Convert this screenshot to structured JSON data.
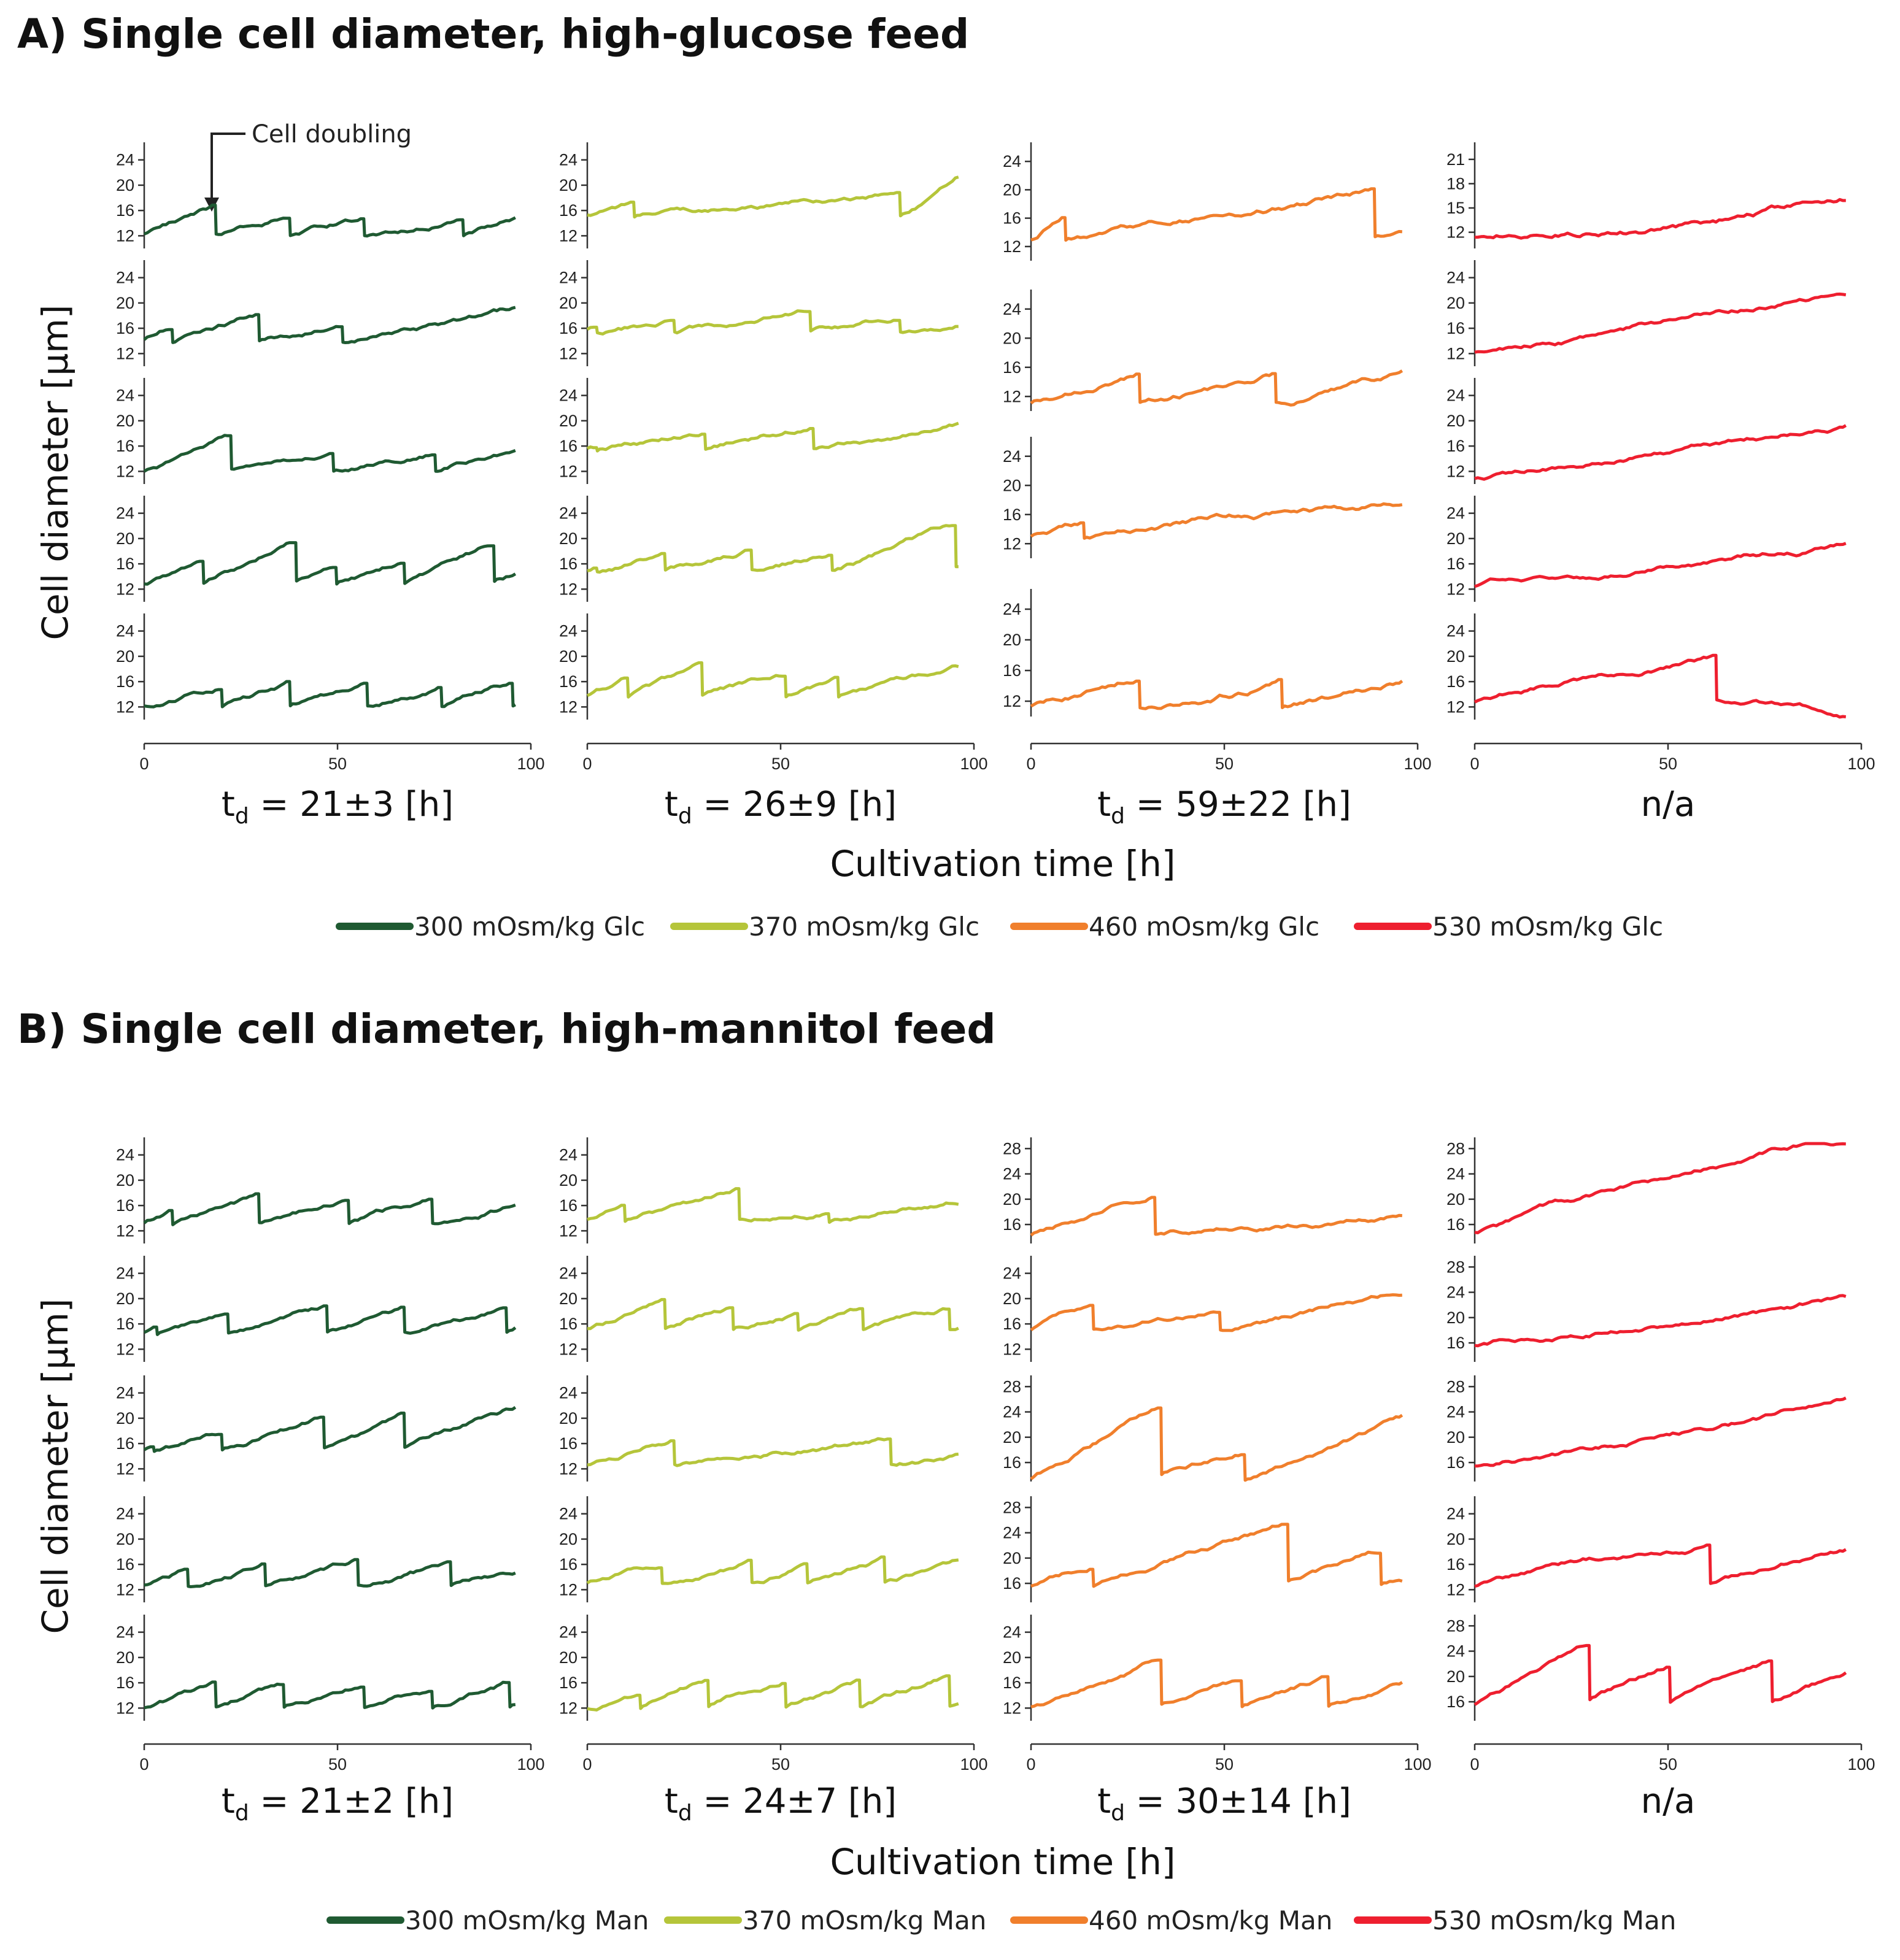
{
  "section_a": {
    "title": "A) Single cell diameter, high-glucose feed",
    "ylabel": "Cell diameter [µm]",
    "xlabel": "Cultivation time [h]",
    "annotation": "Cell doubling",
    "columns": [
      {
        "label_main": "t",
        "label_sub": "d",
        "label_rest": " = 21±3 [h]"
      },
      {
        "label_main": "t",
        "label_sub": "d",
        "label_rest": " = 26±9 [h]"
      },
      {
        "label_main": "t",
        "label_sub": "d",
        "label_rest": " = 59±22 [h]"
      },
      {
        "label_main": "n/a",
        "label_sub": "",
        "label_rest": ""
      }
    ],
    "legend": [
      "300 mOsm/kg Glc",
      "370 mOsm/kg Glc",
      "460 mOsm/kg Glc",
      "530 mOsm/kg Glc"
    ]
  },
  "section_b": {
    "title": "B) Single cell diameter, high-mannitol feed",
    "ylabel": "Cell diameter [µm]",
    "xlabel": "Cultivation time [h]",
    "columns": [
      {
        "label_main": "t",
        "label_sub": "d",
        "label_rest": " = 21±2 [h]"
      },
      {
        "label_main": "t",
        "label_sub": "d",
        "label_rest": " = 24±7 [h]"
      },
      {
        "label_main": "t",
        "label_sub": "d",
        "label_rest": " = 30±14 [h]"
      },
      {
        "label_main": "n/a",
        "label_sub": "",
        "label_rest": ""
      }
    ],
    "legend": [
      "300 mOsm/kg Man",
      "370 mOsm/kg Man",
      "460 mOsm/kg Man",
      "530 mOsm/kg Man"
    ]
  },
  "colors": [
    "#1f5a32",
    "#b5c53a",
    "#f07f2c",
    "#ee1f2f"
  ],
  "chart_data": {
    "type": "line",
    "xlim": [
      0,
      100
    ],
    "x_ticks": [
      0,
      50,
      100
    ],
    "panels": [
      {
        "id": "A-1-1",
        "section": "A",
        "col": 1,
        "row": 1,
        "yticks": [
          12,
          16,
          20,
          24
        ],
        "ylim": [
          10,
          26
        ],
        "start": 12,
        "drifts": [
          0.2,
          0.17,
          0.12,
          0.15,
          0.15,
          0.14
        ],
        "drops": [
          18,
          37,
          56,
          82
        ],
        "end": 96
      },
      {
        "id": "A-1-2",
        "section": "A",
        "col": 1,
        "row": 2,
        "yticks": [
          12,
          16,
          20,
          24
        ],
        "ylim": [
          10,
          26
        ],
        "start": 13.8,
        "drifts": [
          0.3,
          0.18,
          0.15,
          0.07
        ],
        "drops": [
          7,
          29,
          51
        ],
        "end": 96
      },
      {
        "id": "A-1-3",
        "section": "A",
        "col": 1,
        "row": 3,
        "yticks": [
          12,
          16,
          20,
          24
        ],
        "ylim": [
          10,
          26
        ],
        "start": 12,
        "drifts": [
          0.2,
          0.12,
          0.12,
          0.2
        ],
        "drops": [
          22,
          48,
          75
        ],
        "end": 96
      },
      {
        "id": "A-1-4",
        "section": "A",
        "col": 1,
        "row": 4,
        "yticks": [
          12,
          16,
          20,
          24
        ],
        "ylim": [
          10,
          26
        ],
        "start": 12.8,
        "drifts": [
          0.18,
          0.27,
          0.27,
          0.2,
          0.24,
          0.2
        ],
        "drops": [
          15,
          39,
          49,
          67,
          90
        ],
        "end": 96
      },
      {
        "id": "A-1-5",
        "section": "A",
        "col": 1,
        "row": 5,
        "yticks": [
          12,
          16,
          20,
          24
        ],
        "ylim": [
          10,
          26
        ],
        "start": 12,
        "drifts": [
          0.18,
          0.18,
          0.16,
          0.2,
          0.2
        ],
        "drops": [
          20,
          37,
          57,
          76,
          95
        ],
        "end": 96
      },
      {
        "id": "A-2-1",
        "section": "A",
        "col": 2,
        "row": 1,
        "yticks": [
          12,
          16,
          20,
          24
        ],
        "ylim": [
          10,
          26
        ],
        "start": 15,
        "drifts": [
          0.12,
          0.05,
          0.4
        ],
        "drops": [
          12,
          80
        ],
        "end": 96
      },
      {
        "id": "A-2-2",
        "section": "A",
        "col": 2,
        "row": 2,
        "yticks": [
          12,
          16,
          20,
          24
        ],
        "ylim": [
          10,
          26
        ],
        "start": 15.5,
        "drifts": [
          0.2,
          0.1,
          0.1,
          0.1
        ],
        "drops": [
          2,
          22,
          57,
          80
        ],
        "end": 96
      },
      {
        "id": "A-2-3",
        "section": "A",
        "col": 2,
        "row": 3,
        "yticks": [
          12,
          16,
          20,
          24
        ],
        "ylim": [
          10,
          26
        ],
        "start": 15.5,
        "drifts": [
          0.1,
          0.1,
          0.12,
          0.1
        ],
        "drops": [
          2,
          30,
          58,
          96
        ],
        "end": 96
      },
      {
        "id": "A-2-4",
        "section": "A",
        "col": 2,
        "row": 4,
        "yticks": [
          12,
          16,
          20,
          24
        ],
        "ylim": [
          10,
          26
        ],
        "start": 15,
        "drifts": [
          0.15,
          0.15,
          0.16,
          0.14,
          0.2
        ],
        "drops": [
          2,
          20,
          42,
          63,
          95
        ],
        "end": 96
      },
      {
        "id": "A-2-5",
        "section": "A",
        "col": 2,
        "row": 5,
        "yticks": [
          12,
          16,
          20,
          24
        ],
        "ylim": [
          10,
          26
        ],
        "start": 13.5,
        "drifts": [
          0.25,
          0.2,
          0.14,
          0.18,
          0.13
        ],
        "drops": [
          10,
          29,
          51,
          64,
          96
        ],
        "end": 96
      },
      {
        "id": "A-3-1",
        "section": "A",
        "col": 3,
        "row": 1,
        "yticks": [
          12,
          16,
          20,
          24
        ],
        "ylim": [
          10,
          26
        ],
        "start": 12.8,
        "drifts": [
          0.4,
          0.09,
          0.05
        ],
        "drops": [
          8,
          88
        ],
        "end": 96
      },
      {
        "id": "A-3-2",
        "section": "A",
        "col": 3,
        "row": 2,
        "yticks": [
          12,
          16,
          20,
          24
        ],
        "ylim": [
          10,
          26
        ],
        "start": 11,
        "drifts": [
          0.16,
          0.12,
          0.1
        ],
        "drops": [
          28,
          63
        ],
        "end": 96
      },
      {
        "id": "A-3-3",
        "section": "A",
        "col": 3,
        "row": 3,
        "yticks": [
          12,
          16,
          20,
          24
        ],
        "ylim": [
          10,
          26
        ],
        "start": 12.8,
        "drifts": [
          0.14,
          0.06
        ],
        "drops": [
          13
        ],
        "end": 96
      },
      {
        "id": "A-3-4",
        "section": "A",
        "col": 3,
        "row": 4,
        "yticks": [
          12,
          16,
          20,
          24
        ],
        "ylim": [
          10,
          26
        ],
        "start": 11,
        "drifts": [
          0.15,
          0.12,
          0.1
        ],
        "drops": [
          28,
          64
        ],
        "end": 96
      },
      {
        "id": "A-4-1",
        "section": "A",
        "col": 4,
        "row": 1,
        "yticks": [
          12,
          15,
          18,
          21
        ],
        "ylim": [
          10,
          22.5
        ],
        "start": 11.5,
        "drifts": [
          0.07
        ],
        "drops": [],
        "end": 96
      },
      {
        "id": "A-4-2",
        "section": "A",
        "col": 4,
        "row": 2,
        "yticks": [
          12,
          16,
          20,
          24
        ],
        "ylim": [
          10,
          26
        ],
        "start": 12,
        "drifts": [
          0.1
        ],
        "drops": [],
        "end": 96
      },
      {
        "id": "A-4-3",
        "section": "A",
        "col": 4,
        "row": 3,
        "yticks": [
          12,
          16,
          20,
          24
        ],
        "ylim": [
          10,
          26
        ],
        "start": 10.8,
        "drifts": [
          0.085
        ],
        "drops": [],
        "end": 96
      },
      {
        "id": "A-4-4",
        "section": "A",
        "col": 4,
        "row": 4,
        "yticks": [
          12,
          16,
          20,
          24
        ],
        "ylim": [
          10,
          26
        ],
        "start": 12.5,
        "drifts": [
          0.075
        ],
        "drops": [],
        "end": 96
      },
      {
        "id": "A-4-5",
        "section": "A",
        "col": 4,
        "row": 5,
        "yticks": [
          12,
          16,
          20,
          24
        ],
        "ylim": [
          10,
          26
        ],
        "start": 12.5,
        "drifts": [
          0.12,
          -0.05
        ],
        "drops": [
          62
        ],
        "end": 96
      },
      {
        "id": "B-1-1",
        "section": "B",
        "col": 1,
        "row": 1,
        "yticks": [
          12,
          16,
          20,
          24
        ],
        "ylim": [
          10,
          26
        ],
        "start": 13,
        "drifts": [
          0.25,
          0.15,
          0.15,
          0.15,
          0.15
        ],
        "drops": [
          7,
          29,
          52,
          74
        ],
        "end": 96
      },
      {
        "id": "B-1-2",
        "section": "B",
        "col": 1,
        "row": 2,
        "yticks": [
          12,
          16,
          20,
          24
        ],
        "ylim": [
          10,
          26
        ],
        "start": 14.5,
        "drifts": [
          0.2,
          0.15,
          0.17,
          0.17,
          0.15,
          0.2
        ],
        "drops": [
          3,
          21,
          47,
          67,
          93
        ],
        "end": 96
      },
      {
        "id": "B-1-3",
        "section": "B",
        "col": 1,
        "row": 3,
        "yticks": [
          12,
          16,
          20,
          24
        ],
        "ylim": [
          10,
          26
        ],
        "start": 15,
        "drifts": [
          0.2,
          0.15,
          0.2,
          0.2,
          0.2
        ],
        "drops": [
          2,
          20,
          46,
          67
        ],
        "end": 96
      },
      {
        "id": "B-1-4",
        "section": "B",
        "col": 1,
        "row": 4,
        "yticks": [
          12,
          16,
          20,
          24
        ],
        "ylim": [
          10,
          26
        ],
        "start": 12.5,
        "drifts": [
          0.2,
          0.2,
          0.2,
          0.15,
          0.1
        ],
        "drops": [
          11,
          31,
          55,
          79
        ],
        "end": 96
      },
      {
        "id": "B-1-5",
        "section": "B",
        "col": 1,
        "row": 5,
        "yticks": [
          12,
          16,
          20,
          24
        ],
        "ylim": [
          10,
          26
        ],
        "start": 12,
        "drifts": [
          0.17,
          0.2,
          0.2,
          0.2,
          0.2,
          0.15
        ],
        "drops": [
          18,
          36,
          56,
          74,
          94
        ],
        "end": 96
      },
      {
        "id": "B-2-1",
        "section": "B",
        "col": 2,
        "row": 1,
        "yticks": [
          12,
          16,
          20,
          24
        ],
        "ylim": [
          10,
          26
        ],
        "start": 13.5,
        "drifts": [
          0.2,
          0.14,
          0.1,
          0.1
        ],
        "drops": [
          9,
          39,
          62
        ],
        "end": 96
      },
      {
        "id": "B-2-2",
        "section": "B",
        "col": 2,
        "row": 2,
        "yticks": [
          12,
          16,
          20,
          24
        ],
        "ylim": [
          10,
          26
        ],
        "start": 15,
        "drifts": [
          0.2,
          0.2,
          0.17,
          0.17,
          0.16
        ],
        "drops": [
          20,
          37,
          54,
          71,
          93
        ],
        "end": 96
      },
      {
        "id": "B-2-3",
        "section": "B",
        "col": 2,
        "row": 3,
        "yticks": [
          12,
          16,
          20,
          24
        ],
        "ylim": [
          10,
          26
        ],
        "start": 12.5,
        "drifts": [
          0.2,
          0.08,
          0.1
        ],
        "drops": [
          22,
          78
        ],
        "end": 96
      },
      {
        "id": "B-2-4",
        "section": "B",
        "col": 2,
        "row": 4,
        "yticks": [
          12,
          16,
          20,
          24
        ],
        "ylim": [
          10,
          26
        ],
        "start": 13,
        "drifts": [
          0.15,
          0.18,
          0.18,
          0.18,
          0.16
        ],
        "drops": [
          19,
          42,
          56,
          76
        ],
        "end": 96
      },
      {
        "id": "B-2-5",
        "section": "B",
        "col": 2,
        "row": 5,
        "yticks": [
          12,
          16,
          20,
          24
        ],
        "ylim": [
          10,
          26
        ],
        "start": 12,
        "drifts": [
          0.15,
          0.27,
          0.2,
          0.2,
          0.18
        ],
        "drops": [
          13,
          31,
          51,
          70,
          93
        ],
        "end": 96
      },
      {
        "id": "B-3-1",
        "section": "B",
        "col": 3,
        "row": 1,
        "yticks": [
          16,
          20,
          24,
          28
        ],
        "ylim": [
          13,
          29
        ],
        "start": 14,
        "drifts": [
          0.2,
          0.05
        ],
        "drops": [
          32
        ],
        "end": 96
      },
      {
        "id": "B-3-2",
        "section": "B",
        "col": 3,
        "row": 2,
        "yticks": [
          12,
          16,
          20,
          24
        ],
        "ylim": [
          10,
          26
        ],
        "start": 15,
        "drifts": [
          0.25,
          0.12,
          0.12
        ],
        "drops": [
          16,
          48
        ],
        "end": 96
      },
      {
        "id": "B-3-3",
        "section": "B",
        "col": 3,
        "row": 3,
        "yticks": [
          16,
          20,
          24,
          28
        ],
        "ylim": [
          13,
          29
        ],
        "start": 13,
        "drifts": [
          0.35,
          0.2,
          0.2
        ],
        "drops": [
          33,
          55
        ],
        "end": 96
      },
      {
        "id": "B-3-4",
        "section": "B",
        "col": 3,
        "row": 4,
        "yticks": [
          16,
          20,
          24,
          28
        ],
        "ylim": [
          13,
          29
        ],
        "start": 15.5,
        "drifts": [
          0.2,
          0.2,
          0.18,
          0.1
        ],
        "drops": [
          16,
          66,
          90
        ],
        "end": 96
      },
      {
        "id": "B-3-5",
        "section": "B",
        "col": 3,
        "row": 5,
        "yticks": [
          12,
          16,
          20,
          24
        ],
        "ylim": [
          10,
          26
        ],
        "start": 12,
        "drifts": [
          0.2,
          0.18,
          0.18,
          0.15
        ],
        "drops": [
          33,
          54,
          76
        ],
        "end": 96
      },
      {
        "id": "B-4-1",
        "section": "B",
        "col": 4,
        "row": 1,
        "yticks": [
          16,
          20,
          24,
          28
        ],
        "ylim": [
          13,
          29
        ],
        "start": 14.5,
        "drifts": [
          0.14
        ],
        "drops": [],
        "end": 96
      },
      {
        "id": "B-4-2",
        "section": "B",
        "col": 4,
        "row": 2,
        "yticks": [
          16,
          20,
          24,
          28
        ],
        "ylim": [
          13,
          29
        ],
        "start": 15.5,
        "drifts": [
          0.1
        ],
        "drops": [],
        "end": 96
      },
      {
        "id": "B-4-3",
        "section": "B",
        "col": 4,
        "row": 3,
        "yticks": [
          16,
          20,
          24,
          28
        ],
        "ylim": [
          13,
          29
        ],
        "start": 15.5,
        "drifts": [
          0.1
        ],
        "drops": [],
        "end": 96
      },
      {
        "id": "B-4-4",
        "section": "B",
        "col": 4,
        "row": 4,
        "yticks": [
          12,
          16,
          20,
          24
        ],
        "ylim": [
          10,
          26
        ],
        "start": 12.5,
        "drifts": [
          0.12,
          0.17
        ],
        "drops": [
          60
        ],
        "end": 96
      },
      {
        "id": "B-4-5",
        "section": "B",
        "col": 4,
        "row": 5,
        "yticks": [
          16,
          20,
          24,
          28
        ],
        "ylim": [
          13,
          29
        ],
        "start": 15.5,
        "drifts": [
          0.3,
          0.25,
          0.2,
          0.2
        ],
        "drops": [
          29,
          50,
          76
        ],
        "end": 96
      }
    ]
  }
}
